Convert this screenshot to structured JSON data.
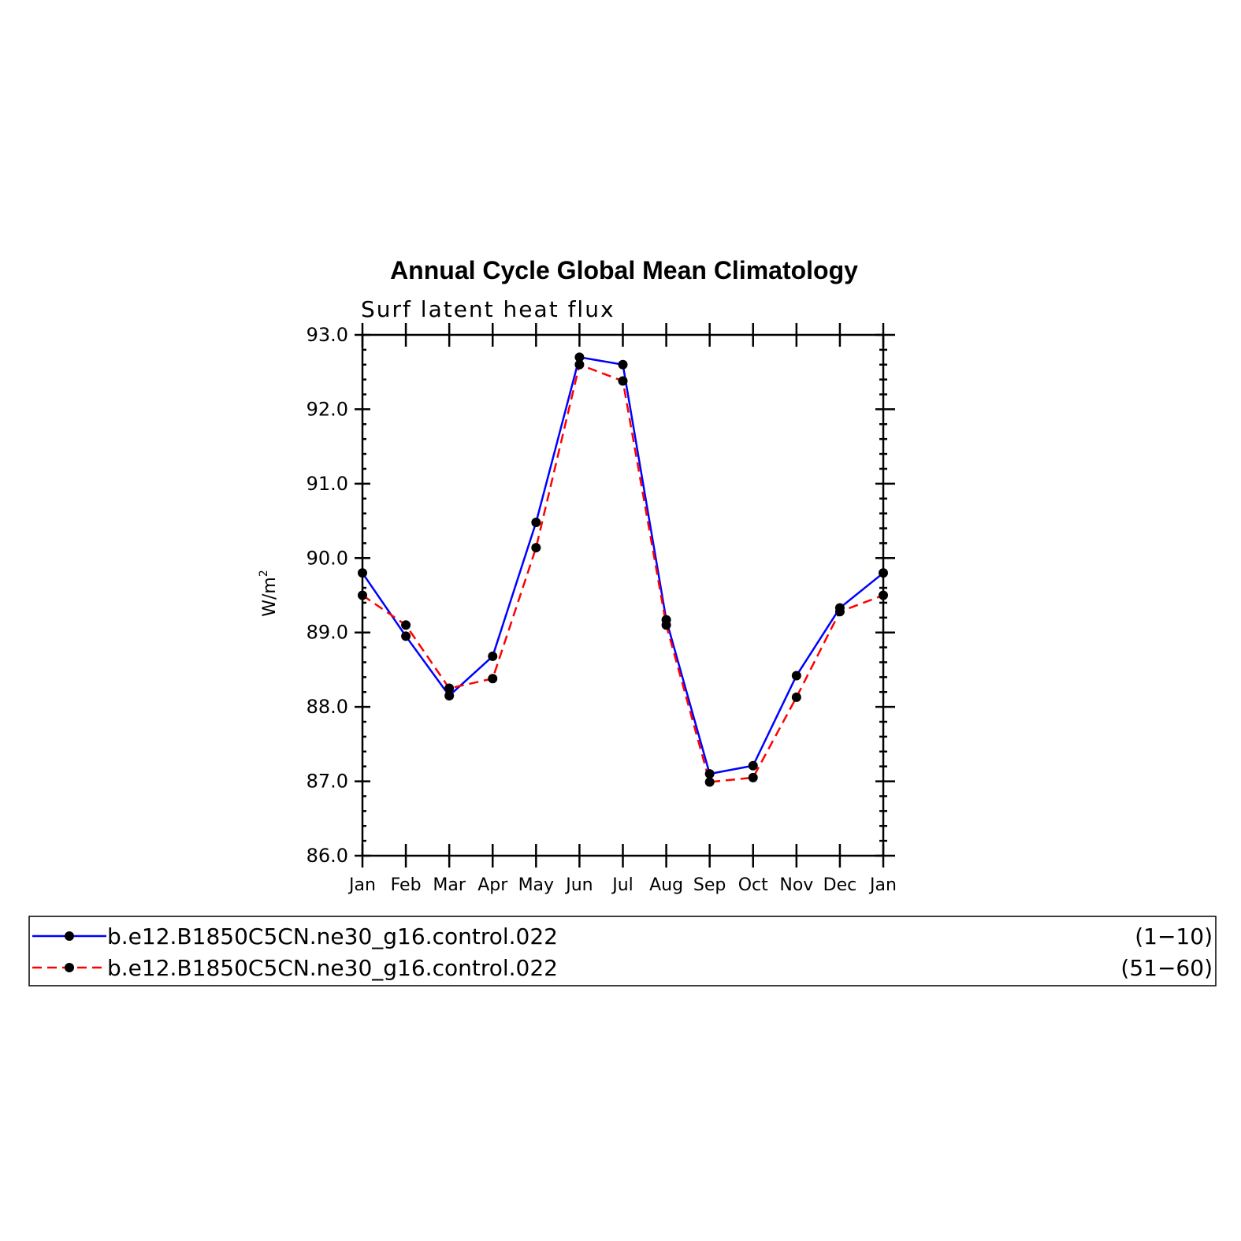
{
  "chart_data": {
    "type": "line",
    "title": "Annual Cycle Global Mean Climatology",
    "subtitle": "Surf latent heat flux",
    "ylabel": "W/m",
    "ylabel_sup": "2",
    "xlabel": "",
    "ylim": [
      86.0,
      93.0
    ],
    "yticks": [
      "86.0",
      "87.0",
      "88.0",
      "89.0",
      "90.0",
      "91.0",
      "92.0",
      "93.0"
    ],
    "categories": [
      "Jan",
      "Feb",
      "Mar",
      "Apr",
      "May",
      "Jun",
      "Jul",
      "Aug",
      "Sep",
      "Oct",
      "Nov",
      "Dec",
      "Jan"
    ],
    "grid": false,
    "legend_position": "bottom",
    "series": [
      {
        "name": "b.e12.B1850C5CN.ne30_g16.control.022",
        "years": "(1−10)",
        "color": "#0000ff",
        "dash": "solid",
        "values": [
          89.8,
          88.95,
          88.15,
          88.68,
          90.48,
          92.7,
          92.6,
          89.17,
          87.1,
          87.21,
          88.42,
          89.33,
          89.8
        ]
      },
      {
        "name": "b.e12.B1850C5CN.ne30_g16.control.022",
        "years": "(51−60)",
        "color": "#ff0000",
        "dash": "dashed",
        "values": [
          89.5,
          89.1,
          88.25,
          88.38,
          90.14,
          92.6,
          92.38,
          89.1,
          86.99,
          87.05,
          88.13,
          89.28,
          89.5
        ]
      }
    ]
  }
}
